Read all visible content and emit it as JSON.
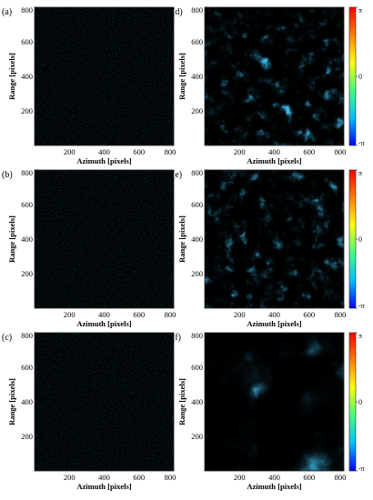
{
  "panels": [
    {
      "letter": "(a)",
      "x_label": "Azimuth [pixels]",
      "y_label": "Range [pixels]",
      "x_ticks": [
        200,
        400,
        600,
        800
      ],
      "y_ticks": [
        200,
        400,
        600,
        800
      ],
      "kind": "noisy-interferogram"
    },
    {
      "letter": "(b)",
      "x_label": "Azimuth [pixels]",
      "y_label": "Range [pixels]",
      "x_ticks": [
        200,
        400,
        600,
        800
      ],
      "y_ticks": [
        200,
        400,
        600,
        800
      ],
      "kind": "noisy-interferogram"
    },
    {
      "letter": "(c)",
      "x_label": "Azimuth [pixels]",
      "y_label": "Range [pixels]",
      "x_ticks": [
        200,
        400,
        600,
        800
      ],
      "y_ticks": [
        200,
        400,
        600,
        800
      ],
      "kind": "noisy-interferogram"
    },
    {
      "letter": "(d)",
      "x_label": "Azimuth [pixels]",
      "y_label": "Range [pixels]",
      "x_ticks": [
        200,
        400,
        600,
        800
      ],
      "y_ticks": [
        200,
        400,
        600,
        800
      ],
      "kind": "filtered-phase"
    },
    {
      "letter": "(e)",
      "x_label": "Azimuth [pixels]",
      "y_label": "Range [pixels]",
      "x_ticks": [
        200,
        400,
        600,
        800
      ],
      "y_ticks": [
        200,
        400,
        600,
        800
      ],
      "kind": "filtered-phase"
    },
    {
      "letter": "(f)",
      "x_label": "Azimuth [pixels]",
      "y_label": "Range [pixels]",
      "x_ticks": [
        200,
        400,
        600,
        800
      ],
      "y_ticks": [
        200,
        400,
        600,
        800
      ],
      "kind": "smooth-phase"
    }
  ],
  "colorbar": {
    "labels": [
      "π",
      "0",
      "-π"
    ],
    "colormap": [
      "#0000ff",
      "#00bfff",
      "#40ff80",
      "#ffff00",
      "#ff8000",
      "#ff0000"
    ]
  },
  "axis_range": {
    "x": [
      0,
      800
    ],
    "y": [
      0,
      800
    ]
  }
}
